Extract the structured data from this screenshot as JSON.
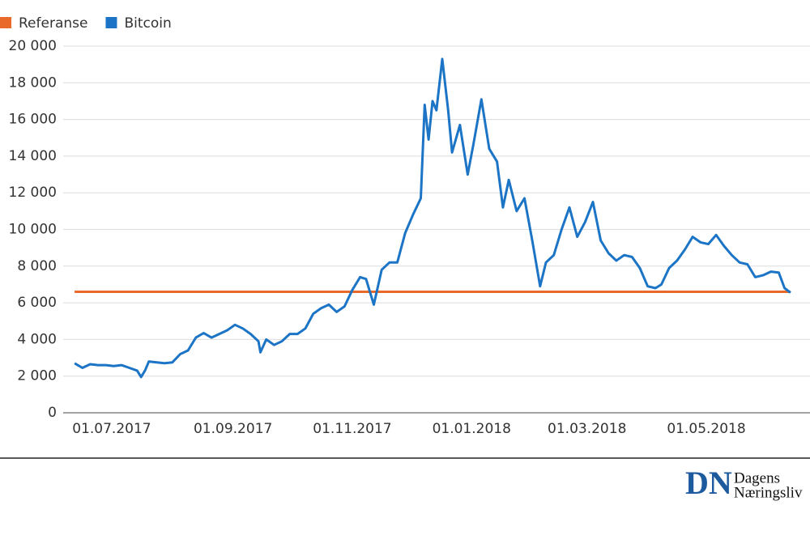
{
  "chart_data": {
    "type": "line",
    "legend": "top-left",
    "grid": true,
    "xlim": [
      "2017-06-07",
      "2018-06-23"
    ],
    "ylim": [
      0,
      20000
    ],
    "yticks": [
      0,
      {
        "value": 2000,
        "label": "2 000"
      },
      {
        "value": 4000,
        "label": "4 000"
      },
      {
        "value": 6000,
        "label": "6 000"
      },
      {
        "value": 8000,
        "label": "8 000"
      },
      {
        "value": 10000,
        "label": "10 000"
      },
      {
        "value": 12000,
        "label": "12 000"
      },
      {
        "value": 14000,
        "label": "14 000"
      },
      {
        "value": 16000,
        "label": "16 000"
      },
      {
        "value": 18000,
        "label": "18 000"
      },
      {
        "value": 20000,
        "label": "20 000"
      }
    ],
    "xticks": [
      {
        "value": "2017-07-01",
        "label": "01.07.2017"
      },
      {
        "value": "2017-09-01",
        "label": "01.09.2017"
      },
      {
        "value": "2017-11-01",
        "label": "01.11.2017"
      },
      {
        "value": "2018-01-01",
        "label": "01.01.2018"
      },
      {
        "value": "2018-03-01",
        "label": "01.03.2018"
      },
      {
        "value": "2018-05-01",
        "label": "01.05.2018"
      }
    ],
    "series": [
      {
        "name": "Referanse",
        "color": "#e8692a",
        "x": [
          "2017-06-12",
          "2018-06-13"
        ],
        "values": [
          6600,
          6600
        ]
      },
      {
        "name": "Bitcoin",
        "color": "#1b74c5",
        "x": [
          "2017-06-12",
          "2017-06-16",
          "2017-06-20",
          "2017-06-24",
          "2017-06-28",
          "2017-07-02",
          "2017-07-06",
          "2017-07-10",
          "2017-07-14",
          "2017-07-16",
          "2017-07-18",
          "2017-07-20",
          "2017-07-24",
          "2017-07-28",
          "2017-08-01",
          "2017-08-05",
          "2017-08-09",
          "2017-08-13",
          "2017-08-17",
          "2017-08-21",
          "2017-08-25",
          "2017-08-29",
          "2017-09-02",
          "2017-09-06",
          "2017-09-10",
          "2017-09-14",
          "2017-09-15",
          "2017-09-18",
          "2017-09-22",
          "2017-09-26",
          "2017-09-30",
          "2017-10-04",
          "2017-10-08",
          "2017-10-12",
          "2017-10-16",
          "2017-10-20",
          "2017-10-24",
          "2017-10-28",
          "2017-11-01",
          "2017-11-05",
          "2017-11-08",
          "2017-11-12",
          "2017-11-16",
          "2017-11-20",
          "2017-11-24",
          "2017-11-28",
          "2017-12-02",
          "2017-12-06",
          "2017-12-08",
          "2017-12-10",
          "2017-12-12",
          "2017-12-14",
          "2017-12-17",
          "2017-12-20",
          "2017-12-22",
          "2017-12-26",
          "2017-12-30",
          "2018-01-02",
          "2018-01-06",
          "2018-01-10",
          "2018-01-14",
          "2018-01-17",
          "2018-01-20",
          "2018-01-24",
          "2018-01-28",
          "2018-02-01",
          "2018-02-05",
          "2018-02-08",
          "2018-02-12",
          "2018-02-16",
          "2018-02-20",
          "2018-02-24",
          "2018-02-28",
          "2018-03-04",
          "2018-03-08",
          "2018-03-12",
          "2018-03-16",
          "2018-03-20",
          "2018-03-24",
          "2018-03-28",
          "2018-04-01",
          "2018-04-05",
          "2018-04-08",
          "2018-04-12",
          "2018-04-16",
          "2018-04-20",
          "2018-04-24",
          "2018-04-28",
          "2018-05-02",
          "2018-05-06",
          "2018-05-10",
          "2018-05-14",
          "2018-05-18",
          "2018-05-22",
          "2018-05-26",
          "2018-05-30",
          "2018-06-03",
          "2018-06-07",
          "2018-06-10",
          "2018-06-13"
        ],
        "values": [
          2700,
          2450,
          2650,
          2600,
          2600,
          2550,
          2600,
          2450,
          2300,
          1950,
          2300,
          2800,
          2750,
          2700,
          2750,
          3200,
          3400,
          4100,
          4350,
          4100,
          4300,
          4500,
          4800,
          4600,
          4300,
          3900,
          3300,
          4000,
          3700,
          3900,
          4300,
          4300,
          4600,
          5400,
          5700,
          5900,
          5500,
          5800,
          6700,
          7400,
          7300,
          5900,
          7800,
          8200,
          8200,
          9800,
          10800,
          11700,
          16800,
          14900,
          17000,
          16500,
          19300,
          16500,
          14200,
          15700,
          13000,
          14700,
          17100,
          14400,
          13700,
          11200,
          12700,
          11000,
          11700,
          9400,
          6900,
          8200,
          8600,
          10000,
          11200,
          9600,
          10400,
          11500,
          9400,
          8700,
          8300,
          8600,
          8500,
          7900,
          6900,
          6800,
          7000,
          7900,
          8300,
          8900,
          9600,
          9300,
          9200,
          9700,
          9100,
          8600,
          8200,
          8100,
          7400,
          7500,
          7700,
          7650,
          6800,
          6550
        ]
      }
    ]
  },
  "logo": {
    "mark": "DN",
    "line1": "Dagens",
    "line2": "Næringsliv"
  }
}
